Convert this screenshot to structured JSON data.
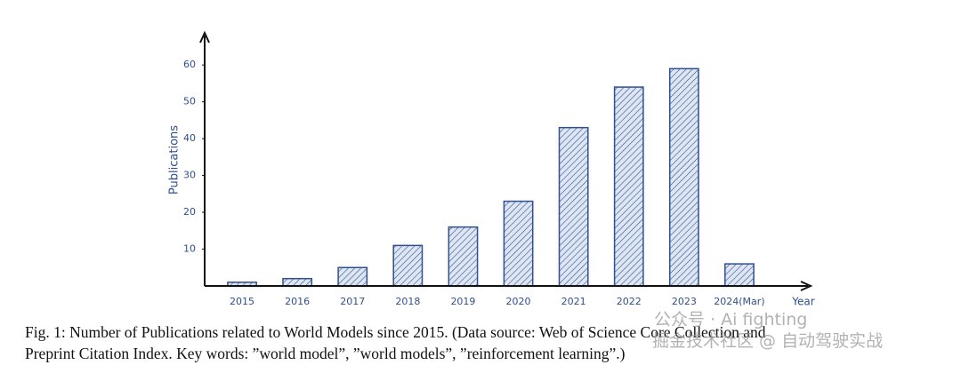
{
  "chart_data": {
    "type": "bar",
    "categories": [
      "2015",
      "2016",
      "2017",
      "2018",
      "2019",
      "2020",
      "2021",
      "2022",
      "2023",
      "2024(Mar)"
    ],
    "values": [
      1,
      2,
      5,
      11,
      16,
      23,
      43,
      54,
      59,
      6
    ],
    "color": "#2f4f8f",
    "ylim": [
      0,
      68
    ],
    "yticks": [
      10,
      20,
      30,
      40,
      50,
      60
    ],
    "y_label": "Publications",
    "x_label": "Year",
    "caption": [
      "Fig. 1: Number of Publications related to World Models since 2015. (Data source: Web of Science Core Collection and",
      "Preprint Citation Index. Key words: ”world model”, ”world models”, ”reinforcement learning”.)"
    ],
    "watermarks": [
      "公众号 · Ai fighting",
      "掘金技术社区 @ 自动驾驶实战"
    ]
  }
}
